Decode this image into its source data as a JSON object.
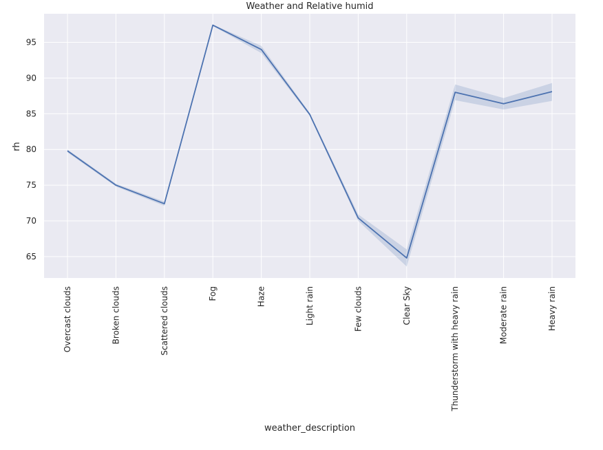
{
  "chart_data": {
    "type": "line",
    "title": "Weather and Relative humid",
    "xlabel": "weather_description",
    "ylabel": "rh",
    "categories": [
      "Overcast clouds",
      "Broken clouds",
      "Scattered clouds",
      "Fog",
      "Haze",
      "Light rain",
      "Few clouds",
      "Clear Sky",
      "Thunderstorm with heavy rain",
      "Moderate rain",
      "Heavy rain"
    ],
    "series": [
      {
        "values": [
          79.8,
          75.0,
          72.4,
          97.4,
          94.0,
          84.9,
          70.4,
          64.8,
          88.0,
          86.4,
          88.1
        ],
        "ci_lower": [
          79.6,
          74.8,
          72.1,
          97.3,
          93.5,
          84.7,
          70.0,
          63.6,
          86.9,
          85.6,
          86.8
        ],
        "ci_upper": [
          80.0,
          75.2,
          72.7,
          97.5,
          94.5,
          85.1,
          70.9,
          66.0,
          89.1,
          87.2,
          89.3
        ],
        "color": "#4c72b0"
      }
    ],
    "ylim": [
      62,
      99
    ],
    "yticks": [
      65,
      70,
      75,
      80,
      85,
      90,
      95
    ],
    "grid": true,
    "background_color": "#eaeaf2",
    "grid_color": "#ffffff"
  }
}
